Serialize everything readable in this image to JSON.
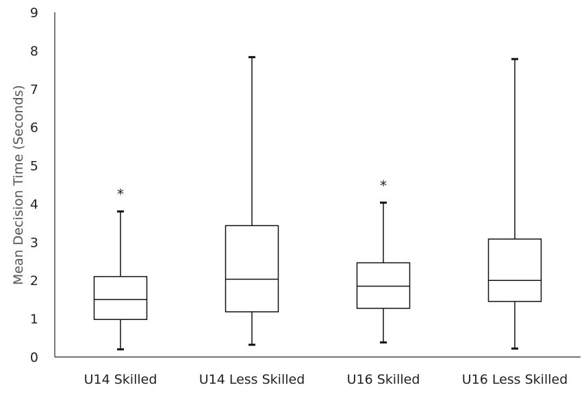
{
  "chart_data": {
    "type": "boxplot",
    "ylabel": "Mean Decision Time (Seconds)",
    "xlabel": "",
    "ylim": [
      0,
      9
    ],
    "yticks": [
      "0",
      "1",
      "2",
      "3",
      "4",
      "5",
      "6",
      "7",
      "8",
      "9"
    ],
    "grid": false,
    "categories": [
      "U14 Skilled",
      "U14 Less Skilled",
      "U16 Skilled",
      "U16 Less Skilled"
    ],
    "boxes": [
      {
        "min": 0.2,
        "q1": 0.98,
        "median": 1.5,
        "q3": 2.1,
        "max": 3.8,
        "annotation": "*"
      },
      {
        "min": 0.32,
        "q1": 1.18,
        "median": 2.03,
        "q3": 3.43,
        "max": 7.83,
        "annotation": ""
      },
      {
        "min": 0.38,
        "q1": 1.27,
        "median": 1.85,
        "q3": 2.46,
        "max": 4.03,
        "annotation": "*"
      },
      {
        "min": 0.22,
        "q1": 1.45,
        "median": 2.0,
        "q3": 3.08,
        "max": 7.78,
        "annotation": ""
      }
    ]
  }
}
